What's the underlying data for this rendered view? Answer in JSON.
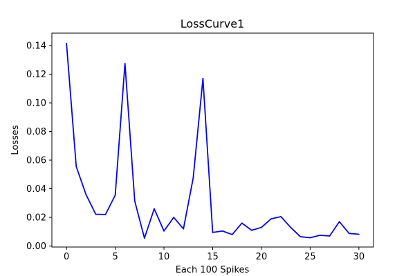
{
  "chart_data": {
    "type": "line",
    "title": "LossCurve1",
    "xlabel": "Each 100 Spikes",
    "ylabel": "Losses",
    "xlim": [
      -1.5,
      31.5
    ],
    "ylim": [
      -0.0007,
      0.1487
    ],
    "x_ticks": [
      0,
      5,
      10,
      15,
      20,
      25,
      30
    ],
    "y_ticks": [
      0.0,
      0.02,
      0.04,
      0.06,
      0.08,
      0.1,
      0.12,
      0.14
    ],
    "grid": false,
    "series": [
      {
        "color": "#0000ff",
        "x": [
          0,
          1,
          2,
          3,
          4,
          5,
          6,
          7,
          8,
          9,
          10,
          11,
          12,
          13,
          14,
          15,
          16,
          17,
          18,
          19,
          20,
          21,
          22,
          23,
          24,
          25,
          26,
          27,
          28,
          29,
          30
        ],
        "values": [
          0.1415,
          0.0555,
          0.036,
          0.0222,
          0.022,
          0.0355,
          0.1275,
          0.0315,
          0.0055,
          0.026,
          0.0105,
          0.02,
          0.012,
          0.0475,
          0.117,
          0.0095,
          0.0105,
          0.008,
          0.016,
          0.011,
          0.013,
          0.019,
          0.0205,
          0.013,
          0.0065,
          0.0058,
          0.0075,
          0.007,
          0.017,
          0.0088,
          0.0082
        ]
      }
    ]
  }
}
